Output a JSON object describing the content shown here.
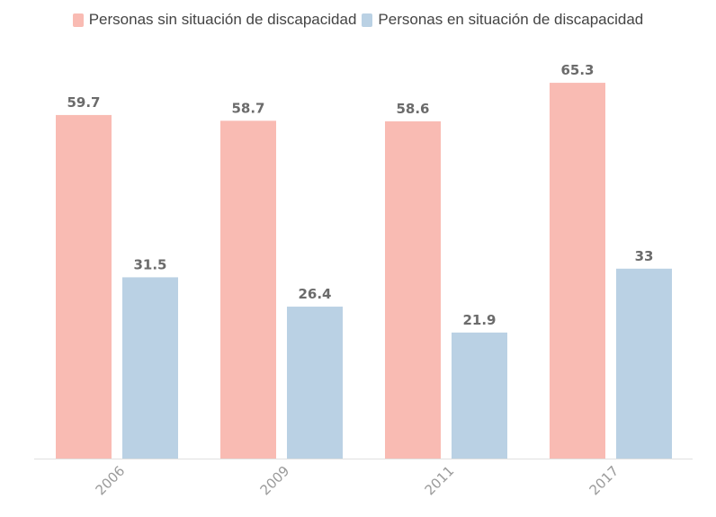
{
  "chart_data": {
    "type": "bar",
    "categories": [
      "2006",
      "2009",
      "2011",
      "2017"
    ],
    "series": [
      {
        "name": "Personas sin situación de discapacidad",
        "values": [
          59.7,
          58.7,
          58.6,
          65.3
        ],
        "color": "#f9bbb3"
      },
      {
        "name": "Personas en situación de discapacidad",
        "values": [
          31.5,
          26.4,
          21.9,
          33
        ],
        "color": "#bad1e4"
      }
    ],
    "value_labels": [
      [
        "59.7",
        "58.7",
        "58.6",
        "65.3"
      ],
      [
        "31.5",
        "26.4",
        "21.9",
        "33"
      ]
    ],
    "ylim": [
      0,
      70
    ],
    "legend_position": "top",
    "grid": false,
    "axis_color": "#e0e0e0",
    "label_color": "#6b6b6b",
    "tick_color": "#9a9a9a"
  }
}
